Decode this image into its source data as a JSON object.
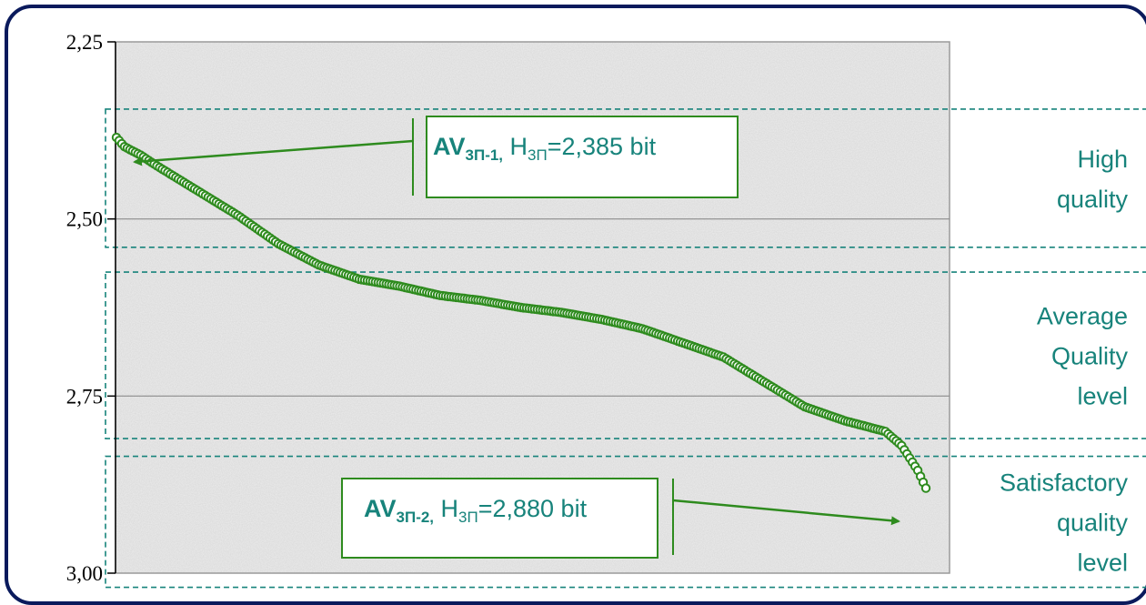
{
  "chart_data": {
    "type": "scatter",
    "title": "",
    "xlabel": "",
    "ylabel": "",
    "ylim": [
      2.25,
      3.0
    ],
    "y_inverted": true,
    "y_ticks": [
      "2,25",
      "2,50",
      "2,75",
      "3,00"
    ],
    "y_tick_values": [
      2.25,
      2.5,
      2.75,
      3.0
    ],
    "grid": "horizontal",
    "series_color": "#2e8b1e",
    "marker": "open-circle",
    "curve_key_points": [
      [
        0.0,
        2.385
      ],
      [
        0.01,
        2.398
      ],
      [
        0.03,
        2.41
      ],
      [
        0.05,
        2.425
      ],
      [
        0.1,
        2.46
      ],
      [
        0.15,
        2.495
      ],
      [
        0.2,
        2.535
      ],
      [
        0.25,
        2.565
      ],
      [
        0.3,
        2.585
      ],
      [
        0.35,
        2.595
      ],
      [
        0.4,
        2.608
      ],
      [
        0.45,
        2.615
      ],
      [
        0.5,
        2.625
      ],
      [
        0.55,
        2.632
      ],
      [
        0.6,
        2.642
      ],
      [
        0.65,
        2.655
      ],
      [
        0.7,
        2.675
      ],
      [
        0.75,
        2.695
      ],
      [
        0.8,
        2.73
      ],
      [
        0.85,
        2.765
      ],
      [
        0.9,
        2.785
      ],
      [
        0.95,
        2.8
      ],
      [
        0.97,
        2.82
      ],
      [
        0.99,
        2.855
      ],
      [
        1.0,
        2.88
      ]
    ],
    "annotations": [
      {
        "bold": "AV",
        "bold_sub": "3П-1,",
        "rest": " H",
        "rest_sub": "3П",
        "value": "=2,385 bit"
      },
      {
        "bold": "AV",
        "bold_sub": "3П-2,",
        "rest": " H",
        "rest_sub": "3П",
        "value": "=2,880 bit"
      }
    ],
    "zones": [
      {
        "lines": [
          "High",
          "quality"
        ],
        "y_range": [
          2.345,
          2.54
        ]
      },
      {
        "lines": [
          "Average",
          "Quality",
          "level"
        ],
        "y_range": [
          2.575,
          2.81
        ]
      },
      {
        "lines": [
          "Satisfactory",
          "quality",
          "level"
        ],
        "y_range": [
          2.835,
          3.02
        ]
      }
    ]
  },
  "colors": {
    "frame": "#0a1a5c",
    "zone_border": "#17837b",
    "zone_text": "#17837b",
    "annotation_border": "#2e8b1e",
    "plot_bg": "#ebebeb",
    "grid": "#8c8c8c"
  }
}
